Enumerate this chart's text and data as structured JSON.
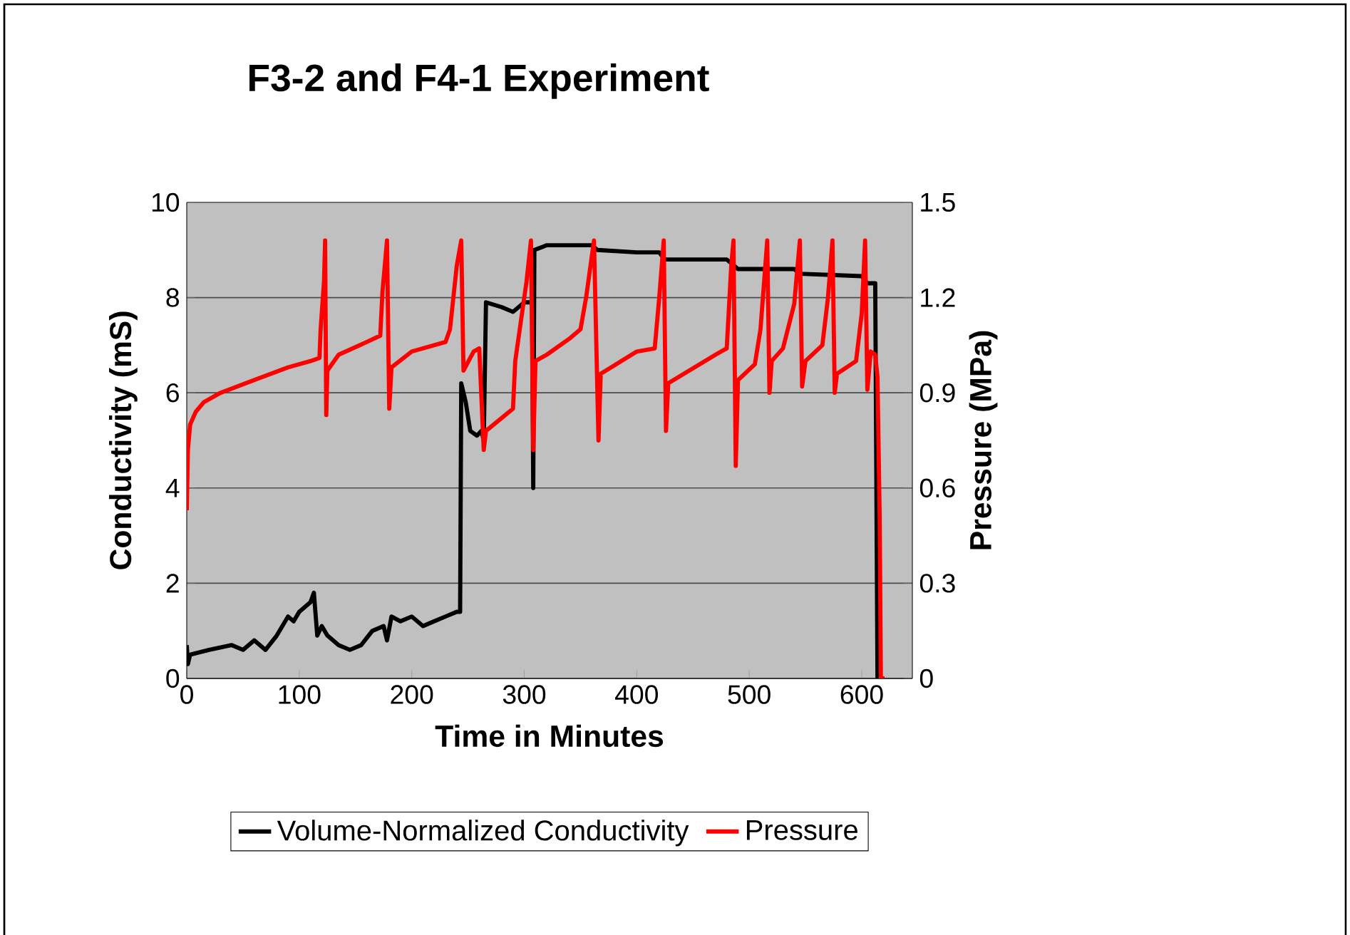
{
  "chart_data": {
    "type": "line",
    "title": "F3-2 and F4-1 Experiment",
    "xlabel": "Time in Minutes",
    "ylabel": "Conductivity (mS)",
    "y2label": "Pressure (MPa)",
    "xlim": [
      0,
      645
    ],
    "xticks": [
      0,
      100,
      200,
      300,
      400,
      500,
      600
    ],
    "ylim": [
      0,
      10
    ],
    "yticks": [
      0,
      2,
      4,
      6,
      8,
      10
    ],
    "y2lim": [
      0,
      1.5
    ],
    "y2ticks": [
      0,
      0.3,
      0.6,
      0.9,
      1.2,
      1.5
    ],
    "grid": "y",
    "legend": "bottom",
    "marker": "none",
    "series": [
      {
        "name": "Volume-Normalized Conductivity",
        "color": "#000000",
        "x": [
          0,
          1,
          3,
          20,
          40,
          50,
          60,
          70,
          80,
          85,
          90,
          95,
          100,
          105,
          110,
          113,
          116,
          120,
          125,
          135,
          145,
          155,
          165,
          175,
          178,
          182,
          190,
          200,
          210,
          220,
          230,
          240,
          243,
          244,
          248,
          252,
          258,
          262,
          264,
          266,
          280,
          290,
          300,
          307,
          308,
          309,
          320,
          360,
          365,
          400,
          420,
          425,
          480,
          490,
          540,
          545,
          600,
          605,
          612,
          614,
          620
        ],
        "values": [
          0.7,
          0.3,
          0.5,
          0.6,
          0.7,
          0.6,
          0.8,
          0.6,
          0.9,
          1.1,
          1.3,
          1.2,
          1.4,
          1.5,
          1.6,
          1.8,
          0.9,
          1.1,
          0.9,
          0.7,
          0.6,
          0.7,
          1.0,
          1.1,
          0.8,
          1.3,
          1.2,
          1.3,
          1.1,
          1.2,
          1.3,
          1.4,
          1.4,
          6.2,
          5.8,
          5.2,
          5.1,
          5.2,
          5.0,
          7.9,
          7.8,
          7.7,
          7.9,
          7.9,
          4.0,
          9.0,
          9.1,
          9.1,
          9.0,
          8.95,
          8.95,
          8.8,
          8.8,
          8.6,
          8.6,
          8.5,
          8.45,
          8.3,
          8.3,
          0.0,
          0.0
        ]
      },
      {
        "name": "Pressure",
        "color": "#ff0000",
        "axis": "y2",
        "x": [
          0,
          1,
          3,
          8,
          15,
          30,
          60,
          90,
          110,
          118,
          119,
          122,
          123,
          124,
          125,
          135,
          160,
          172,
          174,
          178,
          180,
          182,
          200,
          230,
          234,
          240,
          244,
          246,
          255,
          260,
          264,
          266,
          290,
          292,
          302,
          306,
          308,
          310,
          320,
          340,
          350,
          355,
          362,
          366,
          368,
          400,
          416,
          420,
          424,
          426,
          428,
          470,
          480,
          484,
          486,
          488,
          490,
          505,
          510,
          516,
          518,
          520,
          530,
          540,
          545,
          547,
          550,
          565,
          570,
          574,
          576,
          578,
          595,
          600,
          603,
          605,
          608,
          612,
          614,
          616,
          617,
          620
        ],
        "values": [
          0.53,
          0.72,
          0.8,
          0.84,
          0.87,
          0.9,
          0.94,
          0.98,
          1.0,
          1.01,
          1.1,
          1.25,
          1.38,
          0.83,
          0.97,
          1.02,
          1.06,
          1.08,
          1.22,
          1.38,
          0.85,
          0.98,
          1.03,
          1.06,
          1.1,
          1.3,
          1.38,
          0.97,
          1.03,
          1.04,
          0.72,
          0.78,
          0.85,
          1.0,
          1.25,
          1.38,
          0.72,
          1.0,
          1.02,
          1.07,
          1.1,
          1.2,
          1.38,
          0.75,
          0.96,
          1.03,
          1.04,
          1.2,
          1.38,
          0.78,
          0.93,
          1.02,
          1.04,
          1.3,
          1.38,
          0.67,
          0.94,
          0.99,
          1.1,
          1.38,
          0.9,
          1.0,
          1.04,
          1.18,
          1.38,
          0.92,
          1.0,
          1.05,
          1.2,
          1.38,
          0.9,
          0.96,
          1.0,
          1.15,
          1.38,
          0.91,
          1.03,
          1.02,
          0.95,
          0.5,
          0.0,
          0.0
        ]
      }
    ]
  }
}
